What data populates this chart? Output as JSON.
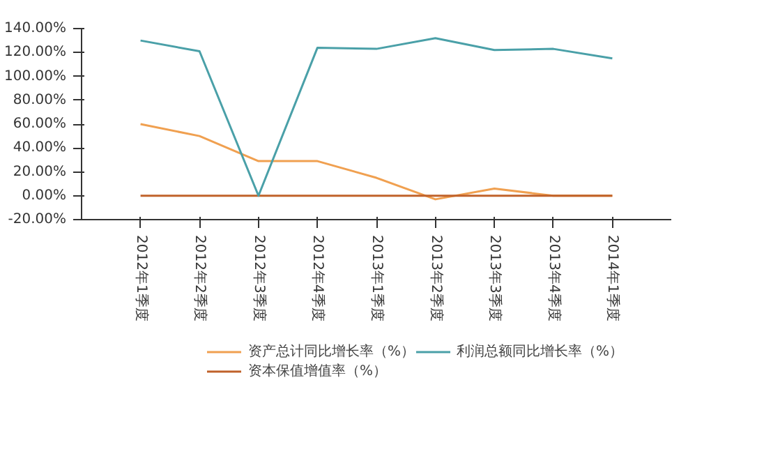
{
  "chart_data": {
    "type": "line",
    "categories": [
      "2012年1季度",
      "2012年2季度",
      "2012年3季度",
      "2012年4季度",
      "2013年1季度",
      "2013年2季度",
      "2013年3季度",
      "2013年4季度",
      "2014年1季度"
    ],
    "series": [
      {
        "name": "资产总计同比增长率（%）",
        "color": "#f0a050",
        "values": [
          60,
          50,
          29,
          29,
          15,
          -3,
          6,
          0,
          0
        ]
      },
      {
        "name": "资本保值增值率（%）",
        "color": "#c0622a",
        "values": [
          0,
          0,
          0,
          0,
          0,
          0,
          0,
          0,
          0
        ]
      },
      {
        "name": "利润总额同比增长率（%）",
        "color": "#4aa0a8",
        "values": [
          130,
          121,
          0,
          124,
          123,
          132,
          122,
          123,
          115
        ]
      }
    ],
    "ylim": [
      -20,
      140
    ],
    "yticks": [
      {
        "value": -20,
        "label": "-20.00%"
      },
      {
        "value": 0,
        "label": "0.00%"
      },
      {
        "value": 20,
        "label": "20.00%"
      },
      {
        "value": 40,
        "label": "40.00%"
      },
      {
        "value": 60,
        "label": "60.00%"
      },
      {
        "value": 80,
        "label": "80.00%"
      },
      {
        "value": 100,
        "label": "100.00%"
      },
      {
        "value": 120,
        "label": "120.00%"
      },
      {
        "value": 140,
        "label": "140.00%"
      }
    ],
    "grid": false,
    "legend": "bottom",
    "marker": "none",
    "line_style": "solid"
  }
}
